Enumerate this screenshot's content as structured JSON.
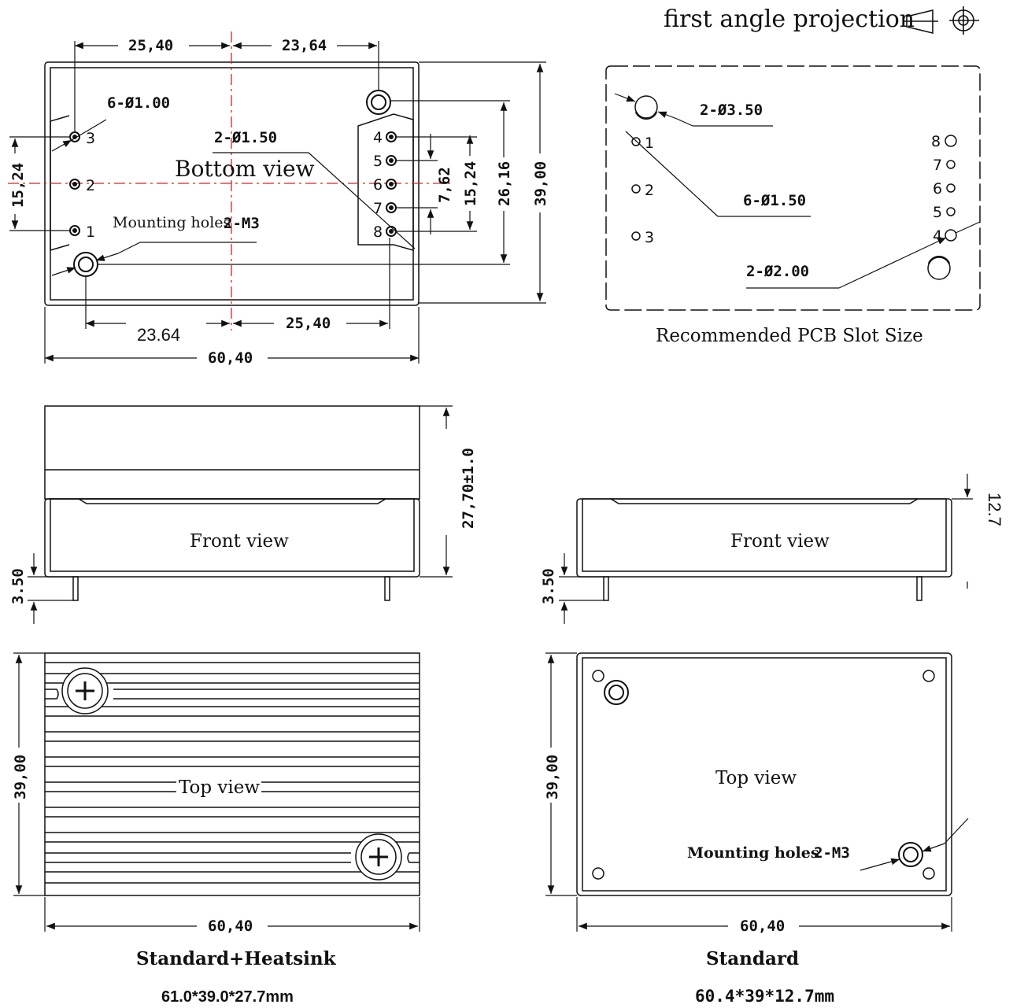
{
  "header": {
    "projection_label": "first angle projection"
  },
  "bottom_view": {
    "title": "Bottom view",
    "dims": {
      "top_left": "25,40",
      "top_right": "23,64",
      "bottom_left": "23.64",
      "bottom_right": "25,40",
      "overall_width": "60,40",
      "overall_height": "39,00",
      "hole_span": "26,16",
      "pin_span_right": "15,24",
      "pin_pitch": "7,62",
      "pin_span_left": "15,24"
    },
    "callouts": {
      "pin_holes": "6-Ø1.00",
      "center_holes": "2-Ø1.50",
      "mounting": "2-M3",
      "mounting_label": "Mounting holes"
    },
    "pins_left": [
      "3",
      "2",
      "1"
    ],
    "pins_right": [
      "4",
      "5",
      "6",
      "7",
      "8"
    ]
  },
  "pcb_view": {
    "caption": "Recommended PCB Slot Size",
    "callouts": {
      "large_hole": "2-Ø3.50",
      "pin_hole": "6-Ø1.50",
      "mount_hole": "2-Ø2.00"
    },
    "pins_left": [
      "1",
      "2",
      "3"
    ],
    "pins_right": [
      "8",
      "7",
      "6",
      "5",
      "4"
    ]
  },
  "front_heatsink": {
    "title": "Front view",
    "height": "27,70±1.0",
    "pin_length": "3.50"
  },
  "front_standard": {
    "title": "Front view",
    "height": "12.7",
    "pin_length": "3.50"
  },
  "top_heatsink": {
    "title": "Top view",
    "height": "39,00",
    "width": "60,40",
    "caption": "Standard+Heatsink",
    "size": "61.0*39.0*27.7mm"
  },
  "top_standard": {
    "title": "Top view",
    "height": "39,00",
    "width": "60,40",
    "mounting_label": "Mounting holes",
    "mounting": "2-M3",
    "caption": "Standard",
    "size": "60.4*39*12.7mm"
  }
}
